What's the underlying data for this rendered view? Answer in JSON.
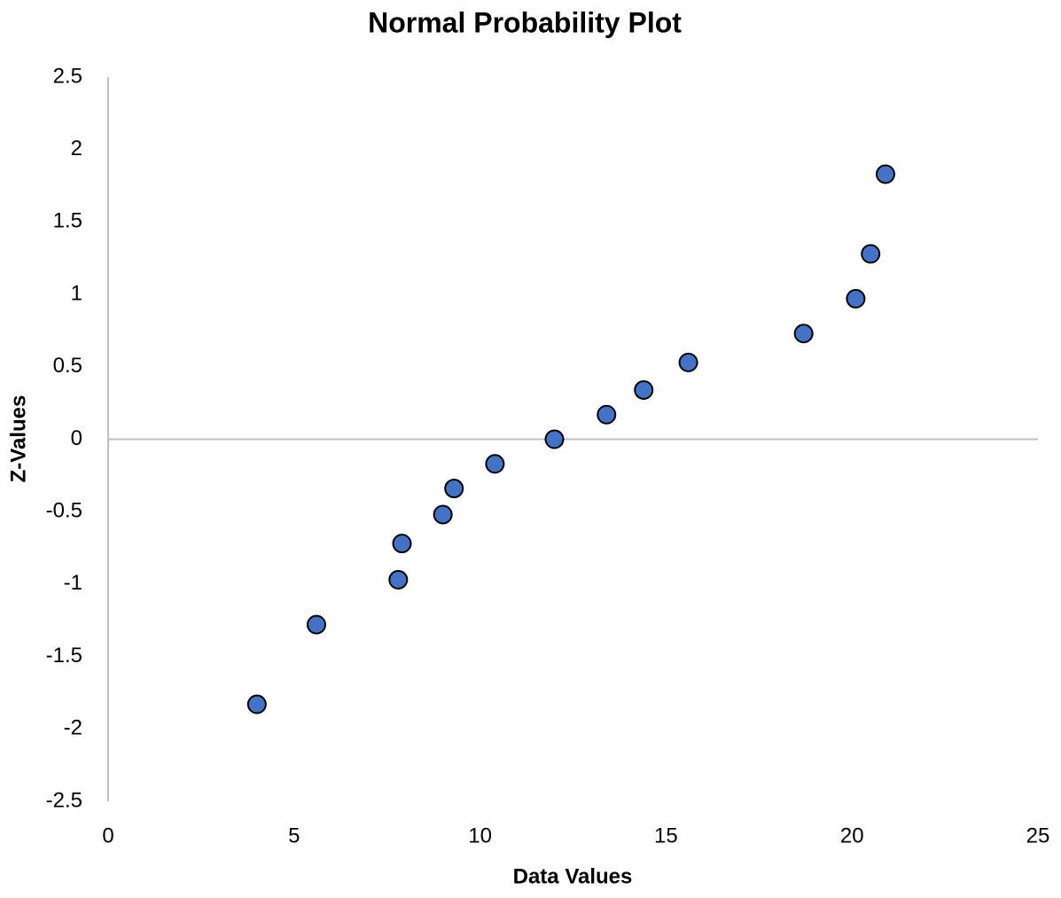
{
  "chart_data": {
    "type": "scatter",
    "title": "Normal Probability Plot",
    "x_label": "Data Values",
    "y_label": "Z-Values",
    "x": [
      4.0,
      5.6,
      7.8,
      7.9,
      9.0,
      9.3,
      10.4,
      12.0,
      13.4,
      14.4,
      15.6,
      18.7,
      20.1,
      20.5,
      20.9
    ],
    "y": [
      -1.83,
      -1.28,
      -0.97,
      -0.72,
      -0.52,
      -0.34,
      -0.17,
      0,
      0.17,
      0.34,
      0.53,
      0.73,
      0.97,
      1.28,
      1.83
    ],
    "color": "#4472c4",
    "xlim": [
      0,
      25
    ],
    "xticks": [
      0,
      5,
      10,
      15,
      20,
      25
    ],
    "ylim": [
      -2.5,
      2.5
    ],
    "yticks": [
      -2.5,
      -2,
      -1.5,
      -1,
      -0.5,
      0,
      0.5,
      1,
      1.5,
      2,
      2.5
    ],
    "grid": false
  }
}
